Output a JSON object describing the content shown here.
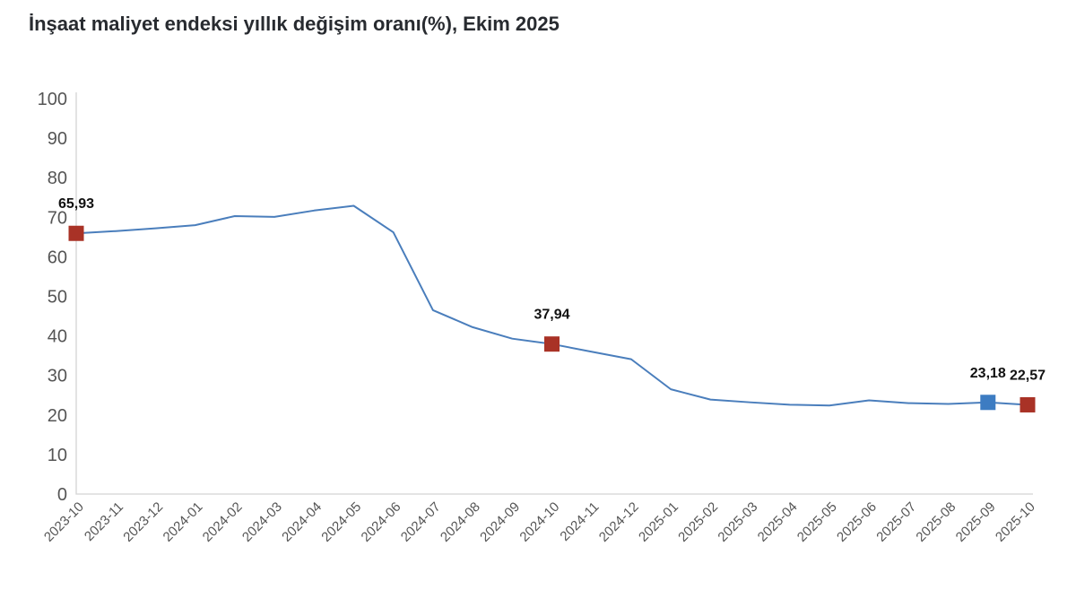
{
  "header": {
    "title": "İnşaat maliyet endeksi yıllık değişim oranı(%), Ekim 2025"
  },
  "chart_data": {
    "type": "line",
    "title": "İnşaat maliyet endeksi yıllık değişim oranı(%), Ekim 2025",
    "categories": [
      "2023-10",
      "2023-11",
      "2023-12",
      "2024-01",
      "2024-02",
      "2024-03",
      "2024-04",
      "2024-05",
      "2024-06",
      "2024-07",
      "2024-08",
      "2024-09",
      "2024-10",
      "2024-11",
      "2024-12",
      "2025-01",
      "2025-02",
      "2025-03",
      "2025-04",
      "2025-05",
      "2025-06",
      "2025-07",
      "2025-08",
      "2025-09",
      "2025-10"
    ],
    "values": [
      65.93,
      66.5,
      67.2,
      68.0,
      70.3,
      70.1,
      71.7,
      72.9,
      66.2,
      46.5,
      42.2,
      39.3,
      37.94,
      36.0,
      34.1,
      26.5,
      23.9,
      23.2,
      22.6,
      22.4,
      23.7,
      23.0,
      22.8,
      23.18,
      22.57
    ],
    "markers": [
      {
        "category": "2023-10",
        "index": 0,
        "label": "65,93",
        "color": "#a93226"
      },
      {
        "category": "2024-10",
        "index": 12,
        "label": "37,94",
        "color": "#a93226"
      },
      {
        "category": "2025-09",
        "index": 23,
        "label": "23,18",
        "color": "#3d7cc2"
      },
      {
        "category": "2025-10",
        "index": 24,
        "label": "22,57",
        "color": "#a93226"
      }
    ],
    "xlabel": "",
    "ylabel": "",
    "ylim": [
      0,
      100
    ],
    "ytick_step": 10,
    "yticks": [
      0,
      10,
      20,
      30,
      40,
      50,
      60,
      70,
      80,
      90,
      100
    ],
    "grid": false,
    "legend": false,
    "line_color": "#4a7ebc",
    "axis_color": "#d4d4d4",
    "tick_label_color": "#555555",
    "marker_label_color": "#111111"
  }
}
